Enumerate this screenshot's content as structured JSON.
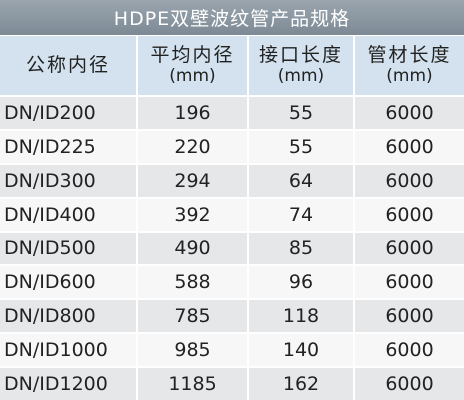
{
  "header": {
    "title": "HDPE双壁波纹管产品规格"
  },
  "table": {
    "columns": [
      {
        "label": "公称内径"
      },
      {
        "label": "平均内径",
        "unit": "(mm)"
      },
      {
        "label": "接口长度",
        "unit": "(mm)"
      },
      {
        "label": "管材长度",
        "unit": "(mm)"
      }
    ],
    "rows": [
      [
        "DN/ID200",
        196,
        55,
        6000
      ],
      [
        "DN/ID225",
        220,
        55,
        6000
      ],
      [
        "DN/ID300",
        294,
        64,
        6000
      ],
      [
        "DN/ID400",
        392,
        74,
        6000
      ],
      [
        "DN/ID500",
        490,
        85,
        6000
      ],
      [
        "DN/ID600",
        588,
        96,
        6000
      ],
      [
        "DN/ID800",
        785,
        118,
        6000
      ],
      [
        "DN/ID1000",
        985,
        140,
        6000
      ],
      [
        "DN/ID1200",
        1185,
        162,
        6000
      ]
    ]
  }
}
